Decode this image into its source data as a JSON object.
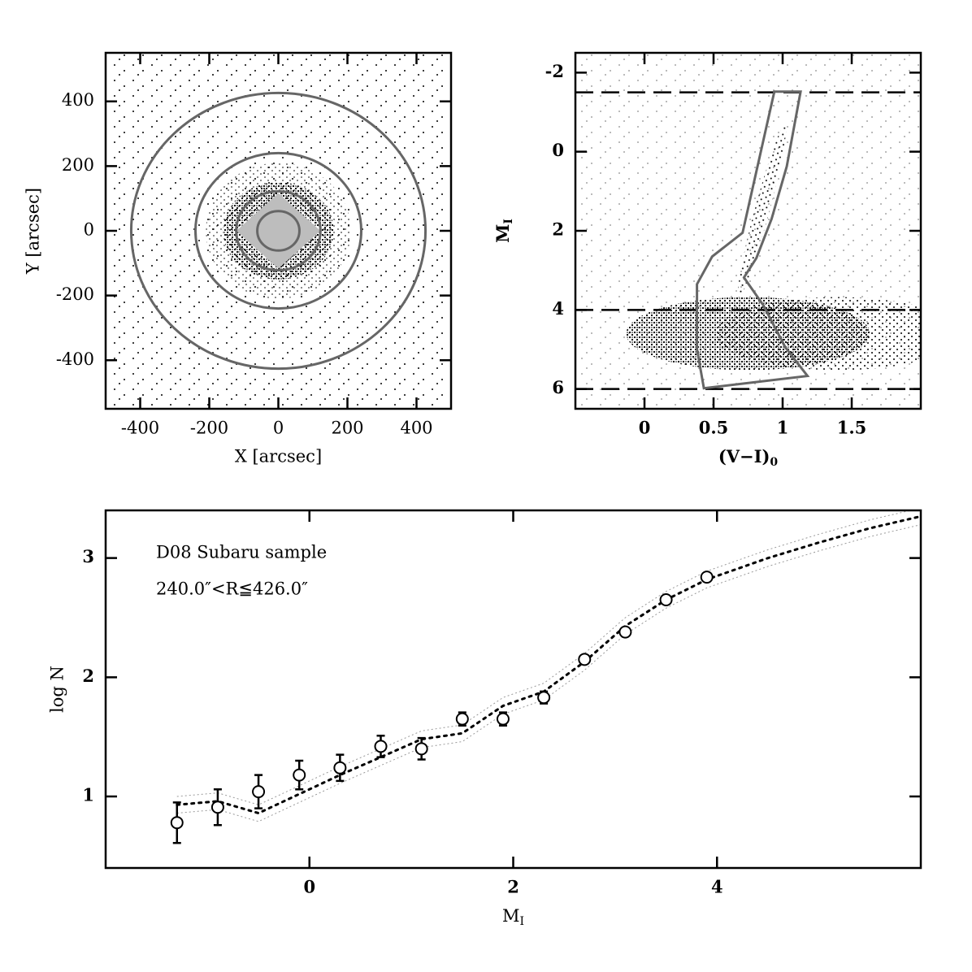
{
  "chart_data": [
    {
      "type": "field",
      "xlabel": "X [arcsec]",
      "ylabel": "Y [arcsec]",
      "xlim": [
        -500,
        500
      ],
      "ylim": [
        -550,
        550
      ],
      "xticks": [
        -400,
        -200,
        0,
        200,
        400
      ],
      "yticks": [
        -400,
        -200,
        0,
        200,
        400
      ],
      "circles": [
        426,
        240,
        122,
        61
      ],
      "circle_color": "#666666",
      "footprint": {
        "x": [
          0,
          120,
          0,
          -120
        ],
        "y": [
          115,
          0,
          -115,
          0
        ],
        "color": "#bdbdbd"
      }
    },
    {
      "type": "cmd",
      "xlabel": {
        "main": "(V−I)",
        "sub": "0"
      },
      "ylabel": {
        "main": "M",
        "sub": "I"
      },
      "xlim": [
        -0.5,
        2.0
      ],
      "ylim": [
        6.5,
        -2.5
      ],
      "xticks": [
        0,
        0.5,
        1,
        1.5
      ],
      "yticks": [
        -2,
        0,
        2,
        4,
        6
      ],
      "hlines": [
        -1.5,
        4,
        6
      ],
      "selection": {
        "color": "#666666",
        "x": [
          0.94,
          1.13,
          1.03,
          0.92,
          0.81,
          0.72,
          0.86,
          1.02,
          1.18,
          0.43,
          0.38,
          0.38,
          0.49,
          0.71
        ],
        "y": [
          -1.52,
          -1.52,
          0.37,
          1.7,
          2.69,
          3.18,
          3.88,
          4.95,
          5.67,
          5.98,
          4.99,
          3.35,
          2.65,
          2.05
        ]
      }
    },
    {
      "type": "lf",
      "xlabel": {
        "main": "M",
        "sub": "I"
      },
      "ylabel": "log N",
      "annotations": [
        "D08 Subaru sample",
        "240.0″<R≦426.0″"
      ],
      "xlim": [
        -2,
        6
      ],
      "ylim": [
        0.4,
        3.4
      ],
      "xticks": [
        0,
        2,
        4
      ],
      "yticks": [
        1,
        2,
        3
      ],
      "points": {
        "x": [
          -1.3,
          -0.9,
          -0.5,
          -0.1,
          0.3,
          0.7,
          1.1,
          1.5,
          1.9,
          2.3,
          2.7,
          3.1,
          3.5,
          3.9
        ],
        "values": [
          0.78,
          0.91,
          1.04,
          1.18,
          1.24,
          1.42,
          1.4,
          1.65,
          1.65,
          1.83,
          2.15,
          2.38,
          2.65,
          2.84
        ],
        "errors": [
          0.17,
          0.15,
          0.14,
          0.12,
          0.11,
          0.09,
          0.09,
          0.055,
          0.055,
          0.05,
          0.035,
          0.03,
          0.025,
          0.02
        ]
      },
      "model": {
        "x": [
          -1.3,
          -0.9,
          -0.5,
          -0.1,
          0.3,
          0.7,
          1.1,
          1.5,
          1.9,
          2.3,
          2.7,
          3.1,
          3.5,
          3.9,
          4.5,
          5.0,
          5.5,
          6.0
        ],
        "values": [
          0.93,
          0.96,
          0.86,
          1.02,
          1.18,
          1.33,
          1.48,
          1.53,
          1.76,
          1.88,
          2.13,
          2.43,
          2.65,
          2.82,
          3.0,
          3.13,
          3.25,
          3.35
        ],
        "lower": [
          0.86,
          0.89,
          0.79,
          0.95,
          1.11,
          1.26,
          1.41,
          1.46,
          1.69,
          1.81,
          2.06,
          2.36,
          2.58,
          2.75,
          2.93,
          3.06,
          3.18,
          3.28
        ],
        "upper": [
          1.0,
          1.03,
          0.93,
          1.09,
          1.25,
          1.4,
          1.55,
          1.6,
          1.83,
          1.95,
          2.2,
          2.5,
          2.72,
          2.89,
          3.07,
          3.2,
          3.32,
          3.42
        ]
      }
    }
  ]
}
